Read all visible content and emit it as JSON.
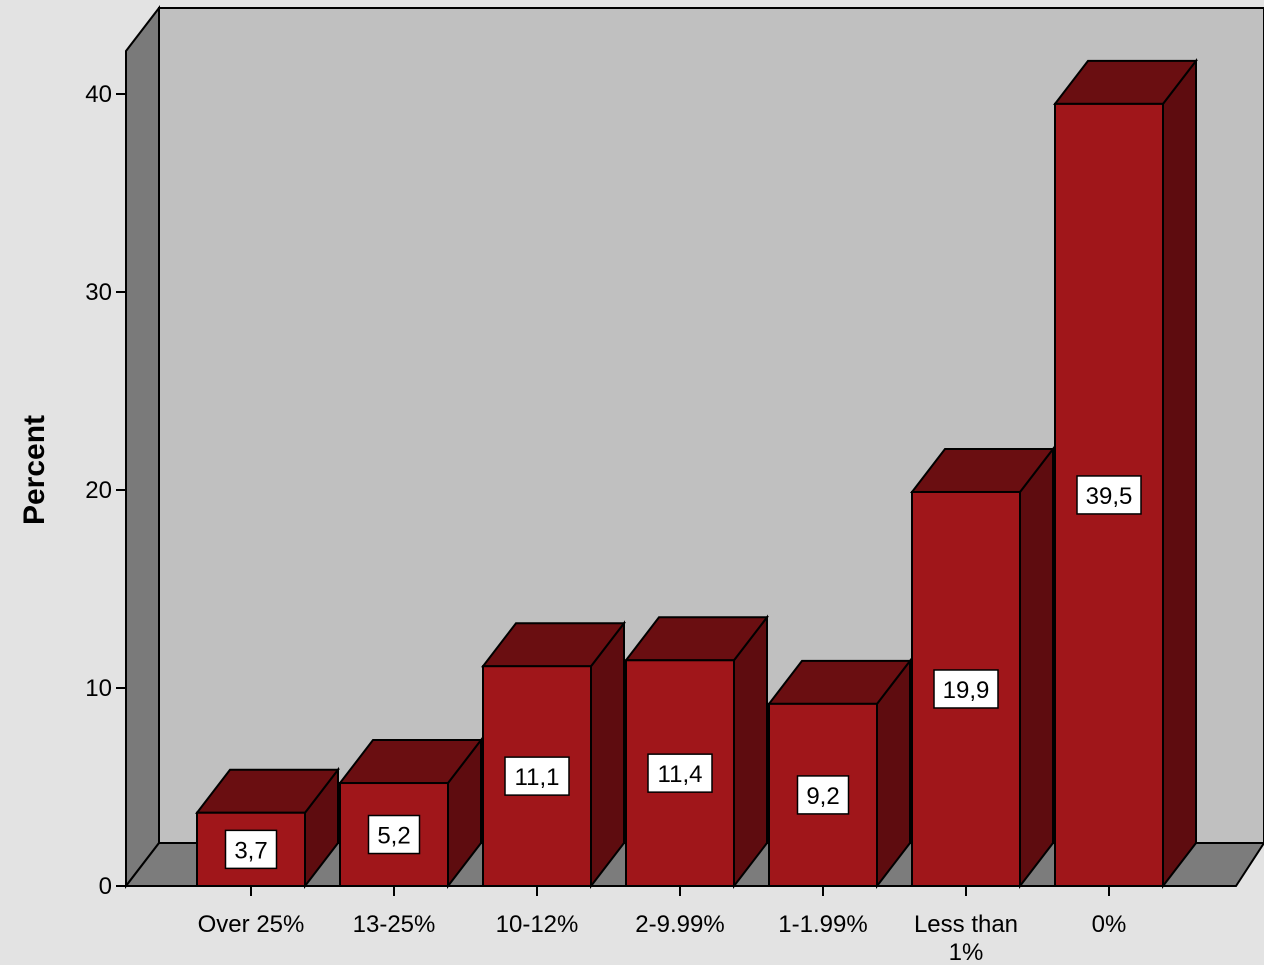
{
  "chart_data": {
    "type": "bar",
    "title": "",
    "xlabel": "",
    "ylabel": "Percent",
    "categories": [
      "Over 25%",
      "13-25%",
      "10-12%",
      "2-9.99%",
      "1-1.99%",
      "Less than 1%",
      "0%"
    ],
    "values": [
      3.7,
      5.2,
      11.1,
      11.4,
      9.2,
      19.9,
      39.5
    ],
    "data_labels": [
      "3,7",
      "5,2",
      "11,1",
      "11,4",
      "9,2",
      "19,9",
      "39,5"
    ],
    "ylim": [
      0,
      40
    ],
    "yticks": [
      0,
      10,
      20,
      30,
      40
    ],
    "ytick_labels": [
      "0",
      "10",
      "20",
      "30",
      "40"
    ],
    "grid": false,
    "style": "3d",
    "colors": {
      "bar_front": "#a0161a",
      "bar_top": "#6a0e11",
      "bar_side": "#5e0c0f",
      "wall": "#c0c0c0",
      "wall_side": "#7a7a7a",
      "floor": "#7c7c7c",
      "background": "#e3e3e3"
    }
  }
}
